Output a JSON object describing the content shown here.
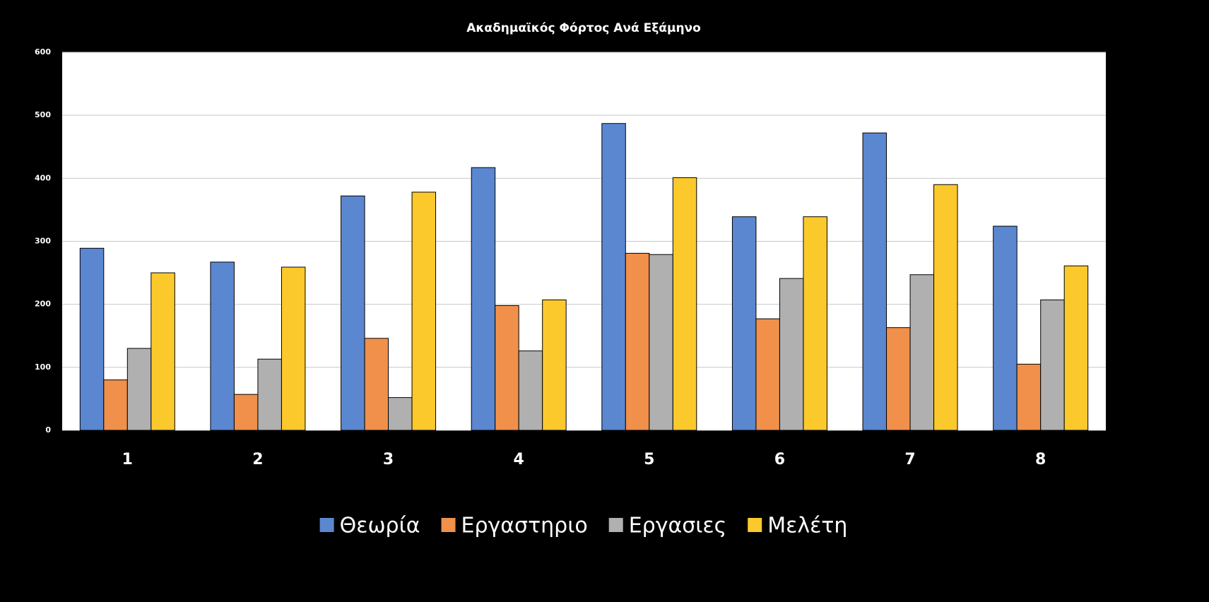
{
  "chart_data": {
    "type": "bar",
    "title": "Ακαδημαϊκός Φόρτος Ανά Εξάμηνο",
    "categories": [
      "1",
      "2",
      "3",
      "4",
      "5",
      "6",
      "7",
      "8"
    ],
    "series": [
      {
        "name": "Θεωρία",
        "color": "#5b87d0",
        "values": [
          289,
          267,
          372,
          417,
          487,
          339,
          472,
          324
        ]
      },
      {
        "name": "Εργαστηριο",
        "color": "#f0904a",
        "values": [
          80,
          57,
          146,
          198,
          281,
          177,
          163,
          105
        ]
      },
      {
        "name": "Εργασιες",
        "color": "#b0b0b0",
        "values": [
          130,
          113,
          52,
          126,
          279,
          241,
          247,
          207
        ]
      },
      {
        "name": "Μελέτη",
        "color": "#fbc92c",
        "values": [
          250,
          259,
          378,
          207,
          401,
          339,
          390,
          261
        ]
      }
    ],
    "ylim": [
      0,
      600
    ],
    "yticks": [
      0,
      100,
      200,
      300,
      400,
      500,
      600
    ],
    "grid": true,
    "legend": "bottom"
  }
}
